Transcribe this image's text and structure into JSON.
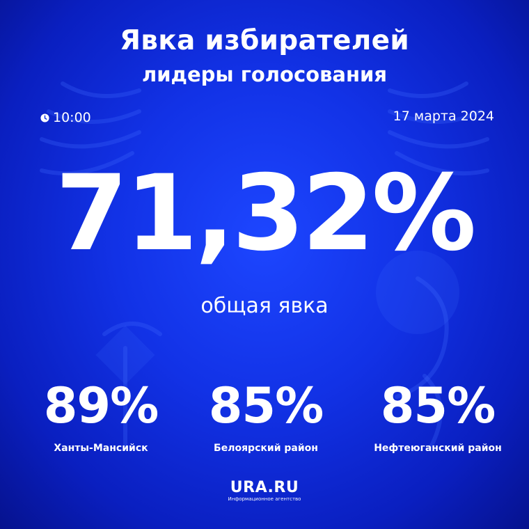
{
  "header": {
    "title": "Явка избирателей",
    "subtitle": "лидеры голосования"
  },
  "meta": {
    "time": "10:00",
    "time_icon": "clock-icon",
    "date": "17 марта 2024"
  },
  "turnout": {
    "value_text": "71,32%",
    "caption": "общая явка"
  },
  "leaders": [
    {
      "value_text": "89%",
      "place": "Ханты-Мансийск"
    },
    {
      "value_text": "85%",
      "place": "Белоярский район"
    },
    {
      "value_text": "85%",
      "place": "Нефтеюганский район"
    }
  ],
  "logo": {
    "name": "URA.RU",
    "tagline": "Информационное агентство"
  },
  "colors": {
    "background": "#1232e6",
    "background_edge": "#06128e",
    "text": "#ffffff"
  }
}
